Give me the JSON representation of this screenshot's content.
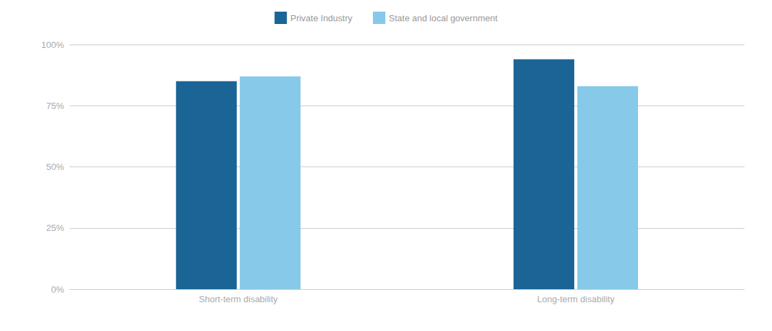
{
  "chart_data": {
    "type": "bar",
    "categories": [
      "Short-term disability",
      "Long-term disability"
    ],
    "series": [
      {
        "name": "Private Industry",
        "color": "#1a6496",
        "values": [
          85,
          94
        ]
      },
      {
        "name": "State and local government",
        "color": "#87c9e8",
        "values": [
          87,
          83
        ]
      }
    ],
    "ylim": [
      0,
      100
    ],
    "yticks": [
      {
        "value": 0,
        "label": "0%"
      },
      {
        "value": 25,
        "label": "25%"
      },
      {
        "value": 50,
        "label": "50%"
      },
      {
        "value": 75,
        "label": "75%"
      },
      {
        "value": 100,
        "label": "100%"
      }
    ],
    "grid": true,
    "legend": "top"
  }
}
